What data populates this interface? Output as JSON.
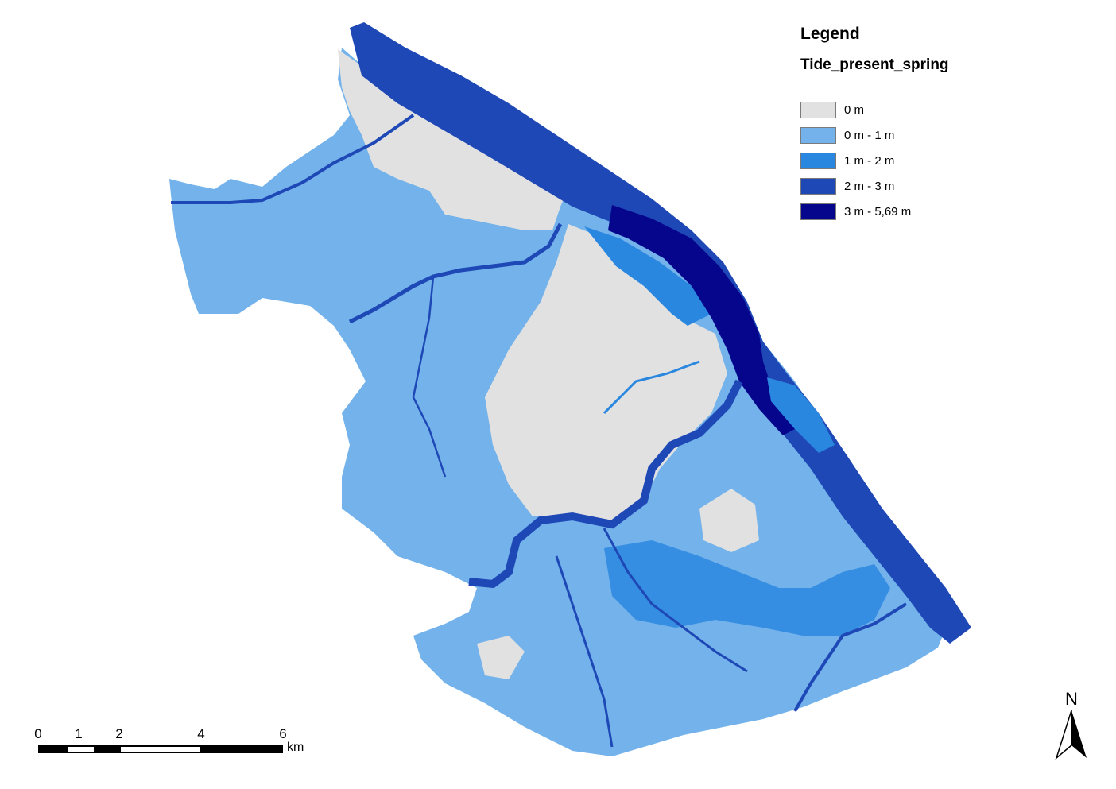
{
  "legend": {
    "title": "Legend",
    "layer": "Tide_present_spring",
    "classes": [
      {
        "label": "0 m",
        "color": "#e1e1e1"
      },
      {
        "label": "0 m - 1 m",
        "color": "#73b2ea"
      },
      {
        "label": "1 m - 2 m",
        "color": "#2a87e0"
      },
      {
        "label": "2 m - 3 m",
        "color": "#1e48b6"
      },
      {
        "label": "3 m - 5,69 m",
        "color": "#06068c"
      }
    ]
  },
  "scale_bar": {
    "ticks": [
      "0",
      "1",
      "2",
      "4",
      "6"
    ],
    "unit": "km"
  },
  "north_arrow": {
    "label": "N",
    "icon": "north-arrow-icon"
  }
}
